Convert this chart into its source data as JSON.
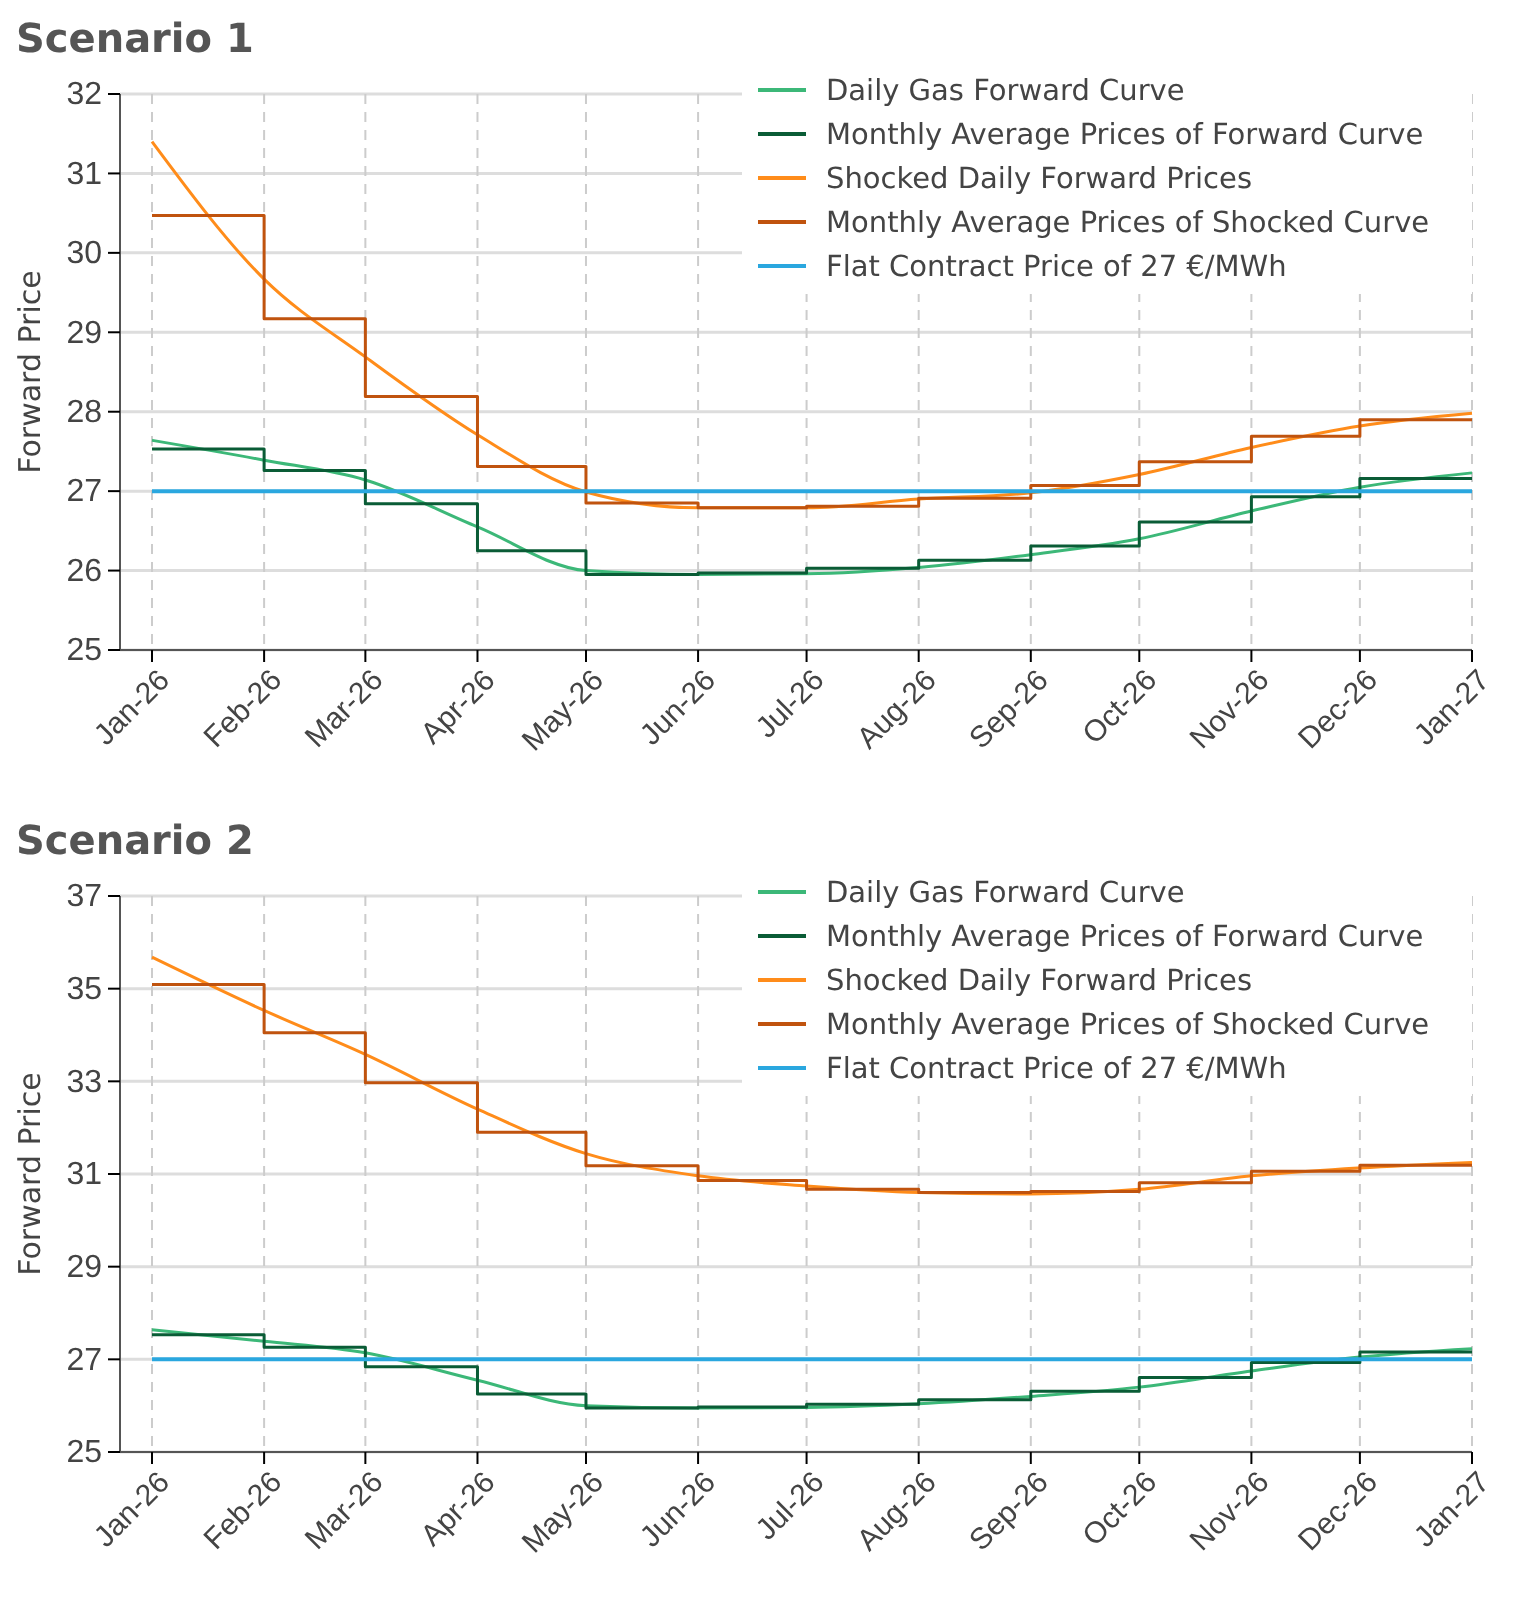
{
  "chart_data": [
    {
      "type": "line",
      "title": "Scenario 1",
      "ylabel": "Forward Price",
      "ylim": [
        25,
        32
      ],
      "yticks": [
        25,
        26,
        27,
        28,
        29,
        30,
        31,
        32
      ],
      "xlim": [
        "2026-01",
        "2027-01"
      ],
      "xticks": [
        {
          "value": "2026-01",
          "label": "Jan-26"
        },
        {
          "value": "2026-02",
          "label": "Feb-26"
        },
        {
          "value": "2026-03",
          "label": "Mar-26"
        },
        {
          "value": "2026-04",
          "label": "Apr-26"
        },
        {
          "value": "2026-05",
          "label": "May-26"
        },
        {
          "value": "2026-06",
          "label": "Jun-26"
        },
        {
          "value": "2026-07",
          "label": "Jul-26"
        },
        {
          "value": "2026-08",
          "label": "Aug-26"
        },
        {
          "value": "2026-09",
          "label": "Sep-26"
        },
        {
          "value": "2026-10",
          "label": "Oct-26"
        },
        {
          "value": "2026-11",
          "label": "Nov-26"
        },
        {
          "value": "2026-12",
          "label": "Dec-26"
        },
        {
          "value": "2027-01",
          "label": "Jan-27"
        }
      ],
      "x": [
        "2026-01",
        "2026-02",
        "2026-03",
        "2026-04",
        "2026-05",
        "2026-06",
        "2026-07",
        "2026-08",
        "2026-09",
        "2026-10",
        "2026-11",
        "2026-12",
        "2027-01"
      ],
      "grid": true,
      "legend": "top right",
      "series": [
        {
          "name": "Daily Gas Forward Curve",
          "color": "#3cb878",
          "values": [
            27.64,
            27.39,
            27.14,
            26.55,
            26.0,
            25.95,
            25.96,
            26.04,
            26.2,
            26.4,
            26.75,
            27.05,
            27.23
          ]
        },
        {
          "name": "Monthly Average Prices of Forward Curve",
          "type": "step",
          "color": "#0a5c36",
          "values": [
            27.53,
            27.26,
            26.84,
            26.25,
            25.95,
            25.97,
            26.03,
            26.13,
            26.31,
            26.61,
            26.93,
            27.16,
            27.16
          ]
        },
        {
          "name": "Shocked Daily Forward Prices",
          "color": "#ff8c1a",
          "values": [
            31.4,
            29.67,
            28.69,
            27.71,
            26.99,
            26.79,
            26.79,
            26.9,
            26.98,
            27.21,
            27.55,
            27.82,
            27.98
          ]
        },
        {
          "name": "Monthly Average Prices of Shocked Curve",
          "type": "step",
          "color": "#c0530e",
          "values": [
            30.47,
            29.17,
            28.19,
            27.31,
            26.85,
            26.79,
            26.81,
            26.91,
            27.07,
            27.37,
            27.69,
            27.9,
            27.9
          ]
        },
        {
          "name": "Flat Contract Price of 27 €/MWh",
          "color": "#2aa7df",
          "x": [
            "2026-01",
            "2027-01"
          ],
          "values": [
            27,
            27
          ]
        }
      ]
    },
    {
      "type": "line",
      "title": "Scenario 2",
      "ylabel": "Forward Price",
      "ylim": [
        25,
        37
      ],
      "yticks": [
        25,
        27,
        29,
        31,
        33,
        35,
        37
      ],
      "xlim": [
        "2026-01",
        "2027-01"
      ],
      "xticks": [
        {
          "value": "2026-01",
          "label": "Jan-26"
        },
        {
          "value": "2026-02",
          "label": "Feb-26"
        },
        {
          "value": "2026-03",
          "label": "Mar-26"
        },
        {
          "value": "2026-04",
          "label": "Apr-26"
        },
        {
          "value": "2026-05",
          "label": "May-26"
        },
        {
          "value": "2026-06",
          "label": "Jun-26"
        },
        {
          "value": "2026-07",
          "label": "Jul-26"
        },
        {
          "value": "2026-08",
          "label": "Aug-26"
        },
        {
          "value": "2026-09",
          "label": "Sep-26"
        },
        {
          "value": "2026-10",
          "label": "Oct-26"
        },
        {
          "value": "2026-11",
          "label": "Nov-26"
        },
        {
          "value": "2026-12",
          "label": "Dec-26"
        },
        {
          "value": "2027-01",
          "label": "Jan-27"
        }
      ],
      "x": [
        "2026-01",
        "2026-02",
        "2026-03",
        "2026-04",
        "2026-05",
        "2026-06",
        "2026-07",
        "2026-08",
        "2026-09",
        "2026-10",
        "2026-11",
        "2026-12",
        "2027-01"
      ],
      "grid": true,
      "legend": "top right",
      "series": [
        {
          "name": "Daily Gas Forward Curve",
          "color": "#3cb878",
          "values": [
            27.64,
            27.39,
            27.14,
            26.55,
            26.0,
            25.95,
            25.96,
            26.04,
            26.2,
            26.4,
            26.75,
            27.05,
            27.23
          ]
        },
        {
          "name": "Monthly Average Prices of Forward Curve",
          "type": "step",
          "color": "#0a5c36",
          "values": [
            27.53,
            27.26,
            26.84,
            26.25,
            25.95,
            25.97,
            26.03,
            26.13,
            26.31,
            26.61,
            26.93,
            27.16,
            27.16
          ]
        },
        {
          "name": "Shocked Daily Forward Prices",
          "color": "#ff8c1a",
          "values": [
            35.68,
            34.53,
            33.58,
            32.4,
            31.44,
            30.96,
            30.74,
            30.6,
            30.57,
            30.67,
            30.96,
            31.13,
            31.25
          ]
        },
        {
          "name": "Monthly Average Prices of Shocked Curve",
          "type": "step",
          "color": "#c0530e",
          "values": [
            35.09,
            34.05,
            32.97,
            31.9,
            31.18,
            30.86,
            30.67,
            30.6,
            30.62,
            30.81,
            31.06,
            31.19,
            31.19
          ]
        },
        {
          "name": "Flat Contract Price of 27 €/MWh",
          "color": "#2aa7df",
          "x": [
            "2026-01",
            "2027-01"
          ],
          "values": [
            27,
            27
          ]
        }
      ]
    }
  ]
}
